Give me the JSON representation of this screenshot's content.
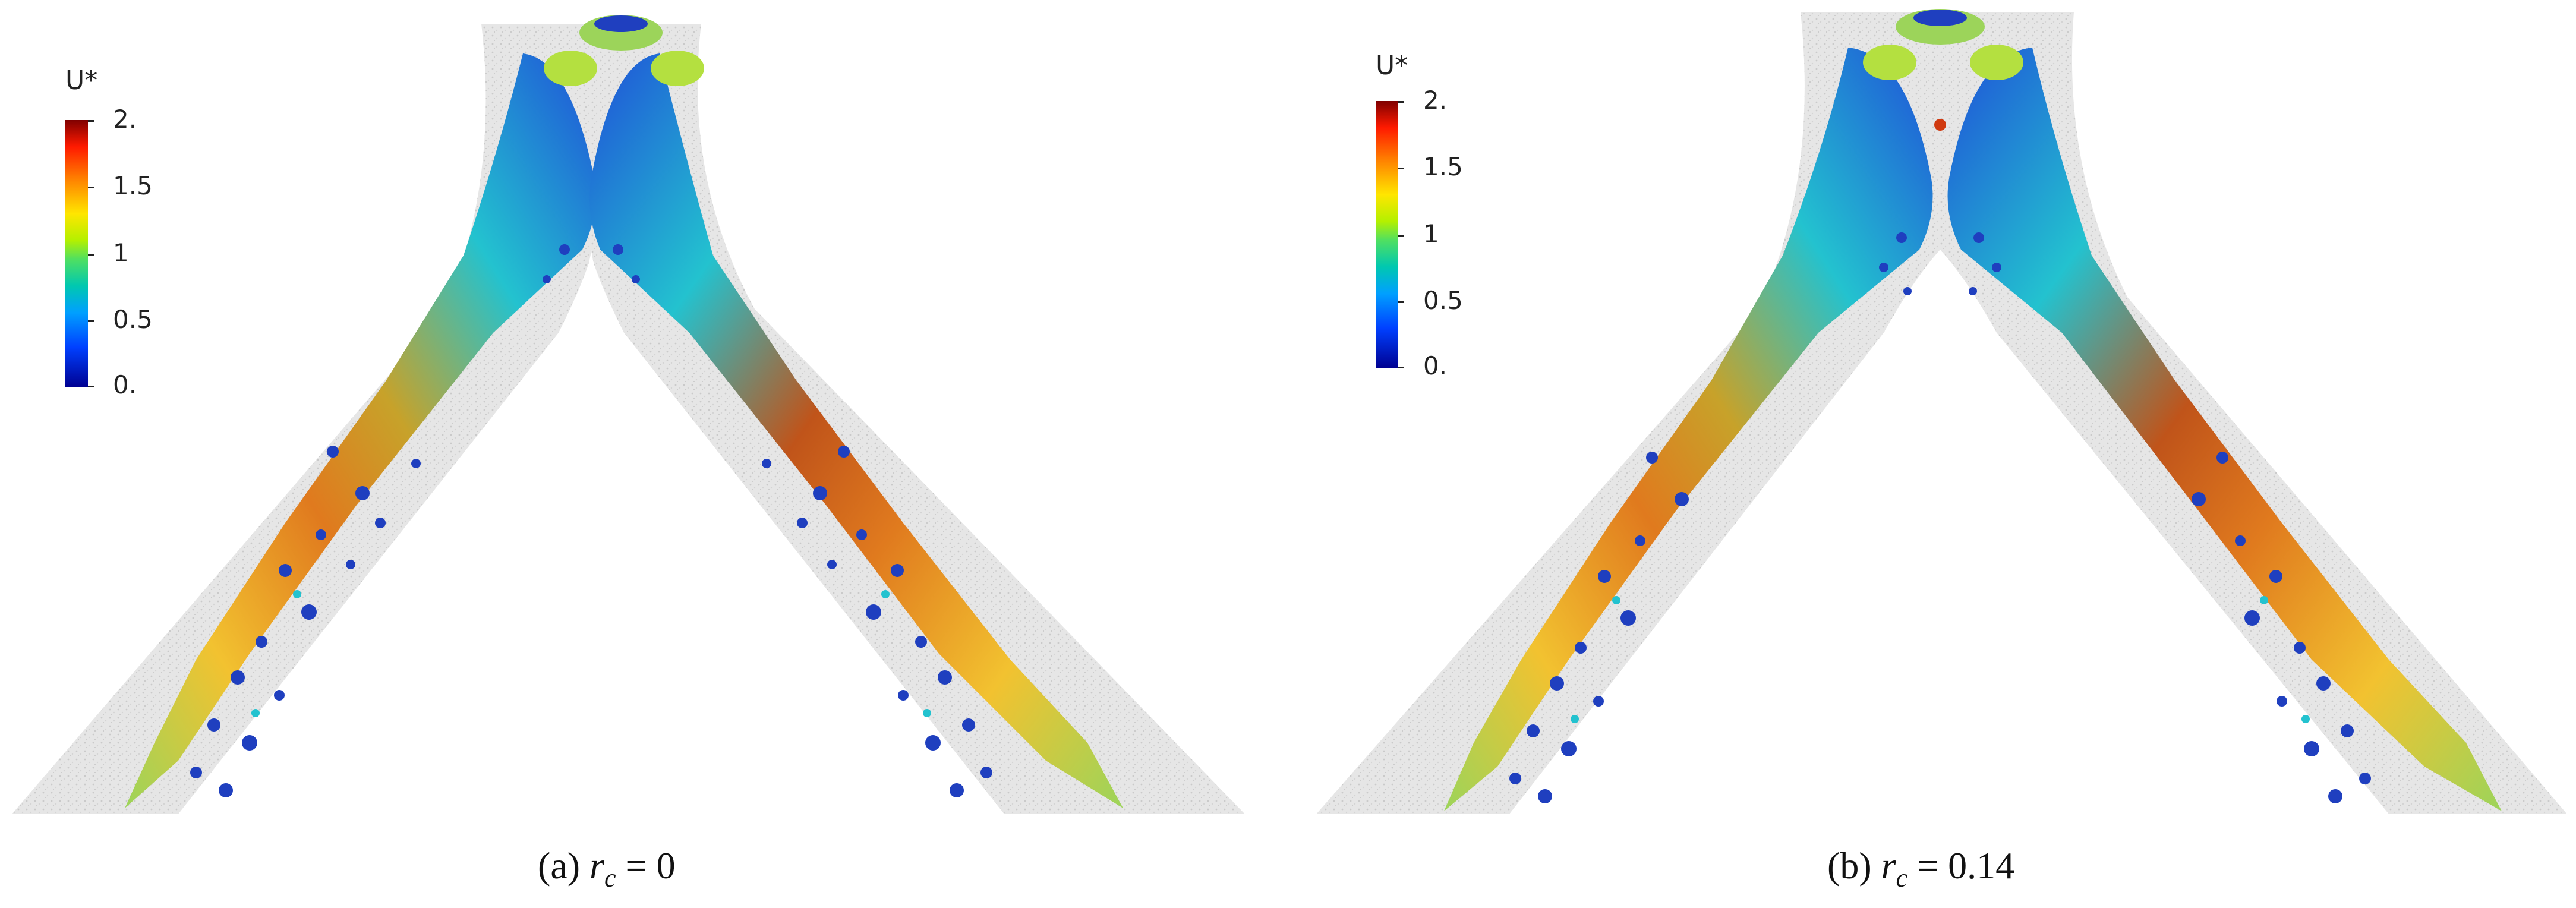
{
  "panels": [
    {
      "colorbar": {
        "title": "U*",
        "ticks": [
          "2.",
          "1.5",
          "1",
          "0.5",
          "0."
        ]
      },
      "caption": {
        "prefix": "(a)",
        "variable": "r",
        "subscript": "c",
        "equals": "=",
        "value": "0"
      }
    },
    {
      "colorbar": {
        "title": "U*",
        "ticks": [
          "2.",
          "1.5",
          "1",
          "0.5",
          "0."
        ]
      },
      "caption": {
        "prefix": "(b)",
        "variable": "r",
        "subscript": "c",
        "equals": "=",
        "value": "0.14"
      }
    }
  ],
  "colors": {
    "channel": "#d9d9d9",
    "jet_high": "#c0541a",
    "jet_mid": "#f2c230",
    "jet_low": "#9cd45a",
    "vortex": "#1f3fbf",
    "vortex_dark": "#0a1a8a",
    "cyan": "#23c2cf"
  }
}
